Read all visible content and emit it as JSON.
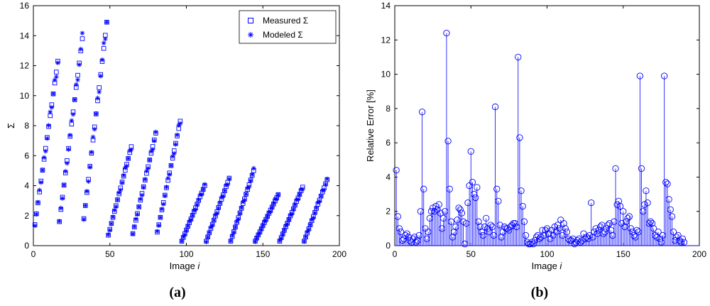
{
  "chart_data": [
    {
      "id": "a",
      "type": "scatter",
      "panel_label": "(a)",
      "xlabel_main": "Image",
      "xlabel_var": "i",
      "ylabel": "Σ",
      "xlim": [
        0,
        200
      ],
      "ylim": [
        0,
        16
      ],
      "xticks": [
        0,
        50,
        100,
        150,
        200
      ],
      "yticks": [
        0,
        2,
        4,
        6,
        8,
        10,
        12,
        14,
        16
      ],
      "grid": false,
      "legend": {
        "position": "top-right",
        "entries": [
          {
            "label": "Measured Σ",
            "marker": "square"
          },
          {
            "label": "Modeled Σ",
            "marker": "asterisk"
          }
        ]
      },
      "color": "#0000ff",
      "segments": [
        {
          "start_i": 1,
          "end_i": 16,
          "start": 1.4,
          "end": 12.3
        },
        {
          "start_i": 17,
          "end_i": 32,
          "start": 1.6,
          "end": 13.8
        },
        {
          "start_i": 33,
          "end_i": 48,
          "start": 1.8,
          "end": 14.9
        },
        {
          "start_i": 49,
          "end_i": 64,
          "start": 0.7,
          "end": 6.6
        },
        {
          "start_i": 65,
          "end_i": 80,
          "start": 0.8,
          "end": 7.5
        },
        {
          "start_i": 81,
          "end_i": 96,
          "start": 0.9,
          "end": 8.3
        },
        {
          "start_i": 97,
          "end_i": 112,
          "start": 0.3,
          "end": 4.0
        },
        {
          "start_i": 113,
          "end_i": 128,
          "start": 0.3,
          "end": 4.5
        },
        {
          "start_i": 129,
          "end_i": 144,
          "start": 0.3,
          "end": 5.0
        },
        {
          "start_i": 145,
          "end_i": 160,
          "start": 0.3,
          "end": 3.4
        },
        {
          "start_i": 161,
          "end_i": 176,
          "start": 0.3,
          "end": 3.9
        },
        {
          "start_i": 177,
          "end_i": 192,
          "start": 0.3,
          "end": 4.4
        }
      ]
    },
    {
      "id": "b",
      "type": "stem",
      "panel_label": "(b)",
      "xlabel_main": "Image",
      "xlabel_var": "i",
      "ylabel": "Relative Error [%]",
      "xlim": [
        0,
        200
      ],
      "ylim": [
        0,
        14
      ],
      "xticks": [
        0,
        50,
        100,
        150,
        200
      ],
      "yticks": [
        0,
        2,
        4,
        6,
        8,
        10,
        12,
        14
      ],
      "grid": false,
      "color": "#0000ff",
      "x_start": 1,
      "values": [
        4.4,
        1.7,
        1.0,
        0.8,
        0.3,
        0.4,
        0.6,
        0.7,
        0.5,
        0.3,
        0.2,
        0.4,
        0.5,
        0.2,
        0.3,
        0.6,
        2.0,
        7.8,
        3.3,
        1.0,
        0.4,
        0.8,
        1.6,
        2.0,
        2.2,
        2.0,
        2.3,
        2.1,
        2.4,
        1.9,
        1.0,
        1.6,
        2.0,
        12.4,
        6.1,
        3.3,
        1.4,
        0.5,
        0.8,
        1.1,
        1.5,
        2.2,
        2.1,
        1.9,
        1.4,
        0.1,
        1.3,
        2.5,
        3.5,
        5.5,
        3.7,
        3.0,
        2.8,
        3.4,
        1.4,
        1.1,
        0.8,
        0.6,
        1.1,
        1.6,
        1.0,
        0.8,
        1.2,
        1.1,
        0.6,
        8.1,
        3.3,
        2.6,
        1.2,
        0.5,
        0.8,
        1.1,
        1.0,
        1.0,
        0.9,
        1.1,
        1.2,
        1.3,
        1.3,
        1.1,
        11.0,
        6.3,
        3.2,
        2.3,
        1.4,
        0.6,
        0.2,
        0.1,
        0.1,
        0.2,
        0.1,
        0.3,
        0.5,
        0.6,
        0.4,
        0.5,
        0.9,
        0.6,
        0.9,
        1.0,
        0.7,
        0.4,
        0.9,
        0.6,
        1.1,
        0.8,
        1.2,
        1.0,
        1.5,
        0.6,
        1.3,
        1.0,
        0.8,
        0.4,
        0.3,
        0.3,
        0.4,
        0.1,
        0.2,
        0.3,
        0.4,
        0.2,
        0.3,
        0.7,
        0.4,
        0.5,
        0.4,
        0.6,
        2.5,
        0.5,
        0.8,
        1.0,
        0.7,
        0.9,
        1.1,
        1.2,
        0.7,
        0.8,
        1.0,
        1.2,
        1.3,
        0.9,
        0.6,
        1.4,
        4.5,
        2.4,
        2.6,
        2.3,
        1.3,
        2.0,
        1.1,
        1.4,
        1.6,
        1.7,
        1.0,
        0.8,
        0.6,
        0.5,
        0.9,
        0.8,
        9.9,
        4.5,
        2.0,
        2.4,
        3.2,
        2.5,
        1.3,
        1.4,
        1.3,
        1.0,
        0.6,
        0.5,
        0.8,
        0.4,
        0.2,
        0.6,
        9.9,
        3.7,
        3.6,
        2.7,
        2.1,
        1.7,
        0.8,
        0.3,
        0.5,
        0.6,
        0.3,
        0.2,
        0.4,
        0.2
      ]
    }
  ]
}
